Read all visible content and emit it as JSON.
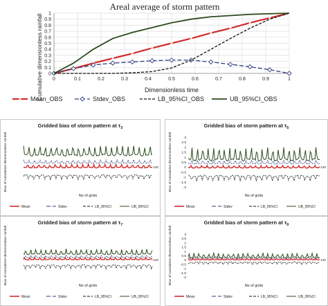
{
  "colors": {
    "mean": "#d42a2a",
    "stdev": "#2a3c78",
    "lb": "#111111",
    "ub": "#2c4a1e",
    "grid": "#dddddd",
    "axis": "#888888",
    "frame": "#bbbbbb"
  },
  "chart_data": [
    {
      "type": "line",
      "title": "Areal average of storm pattern",
      "xlabel": "Dimensionless time",
      "ylabel": "Cumulative dimensionless rainfall",
      "xlim": [
        0,
        1
      ],
      "ylim": [
        0,
        1
      ],
      "x_ticks": [
        "0",
        "0.1",
        "0.2",
        "0.3",
        "0.4",
        "0.5",
        "0.6",
        "0.7",
        "0.8",
        "0.9",
        "1"
      ],
      "y_ticks": [
        "0",
        "0.1",
        "0.2",
        "0.3",
        "0.4",
        "0.5",
        "0.6",
        "0.7",
        "0.8",
        "0.9",
        "1"
      ],
      "grid": true,
      "legend_position": "bottom",
      "x": [
        0,
        0.083,
        0.167,
        0.25,
        0.333,
        0.417,
        0.5,
        0.583,
        0.667,
        0.75,
        0.833,
        0.917,
        1
      ],
      "series": [
        {
          "key": "mean",
          "name": "Mean_OBS",
          "style": "solid-x",
          "values": [
            0,
            0.08,
            0.17,
            0.25,
            0.33,
            0.42,
            0.5,
            0.58,
            0.67,
            0.75,
            0.84,
            0.92,
            1
          ]
        },
        {
          "key": "stdev",
          "name": "Stdev_OBS",
          "style": "dash-diamond",
          "values": [
            0,
            0.08,
            0.14,
            0.17,
            0.19,
            0.21,
            0.22,
            0.22,
            0.19,
            0.15,
            0.11,
            0.06,
            0
          ]
        },
        {
          "key": "lb",
          "name": "LB_95%CI_OBS",
          "style": "dash",
          "values": [
            0,
            0,
            0,
            0,
            0.01,
            0.03,
            0.09,
            0.22,
            0.4,
            0.58,
            0.75,
            0.9,
            1
          ]
        },
        {
          "key": "ub",
          "name": "UB_95%CI_OBS",
          "style": "solid",
          "values": [
            0,
            0.17,
            0.4,
            0.58,
            0.68,
            0.76,
            0.84,
            0.9,
            0.94,
            0.96,
            0.98,
            0.99,
            1
          ]
        }
      ]
    },
    {
      "type": "line",
      "title": "Gridded bias of storm pattern at",
      "title_sub": "3",
      "xlabel": "No of grids",
      "ylabel": "Bias of cumulative dimensionless rainfall",
      "ylim": [
        -2,
        3
      ],
      "y_ticks": [],
      "x_end_label": "140",
      "legend_position": "bottom",
      "series_levels": {
        "mean": 0.05,
        "stdev": 0.5,
        "lb": -0.85,
        "ub": 1.5
      },
      "series_amplitude": {
        "mean": 0.2,
        "stdev": 0.2,
        "lb": 0.35,
        "ub": 0.55
      }
    },
    {
      "type": "line",
      "title": "Gridded bias of storm pattern at",
      "title_sub": "5",
      "xlabel": "No of grids",
      "ylabel": "Bias of cumulative dimensionless rainfall",
      "ylim": [
        -2,
        3
      ],
      "y_ticks": [
        "3",
        "2.5",
        "2",
        "1.5",
        "1",
        "0.5",
        "0",
        "-0.5",
        "-1",
        "-1.5",
        "-2"
      ],
      "x_end_label": "140",
      "legend_position": "bottom",
      "series_levels": {
        "mean": 0.0,
        "stdev": 0.45,
        "lb": -0.9,
        "ub": 1.15
      },
      "series_amplitude": {
        "mean": 0.15,
        "stdev": 0.2,
        "lb": 0.45,
        "ub": 0.75
      }
    },
    {
      "type": "line",
      "title": "Gridded bias of storm pattern at",
      "title_sub": "7",
      "xlabel": "No of grids",
      "ylabel": "Bias of cumulative dimensionless rainfall",
      "ylim": [
        -2,
        3
      ],
      "y_ticks": [],
      "x_end_label": "140",
      "legend_position": "bottom",
      "series_levels": {
        "mean": 0.1,
        "stdev": 0.35,
        "lb": -0.65,
        "ub": 0.85
      },
      "series_amplitude": {
        "mean": 0.15,
        "stdev": 0.15,
        "lb": 0.35,
        "ub": 0.35
      }
    },
    {
      "type": "line",
      "title": "Gridded bias of storm pattern at",
      "title_sub": "9",
      "xlabel": "No of grids",
      "ylabel": "Bias of cumulative dimensionless rainfall",
      "ylim": [
        -2,
        3
      ],
      "y_ticks": [
        "3",
        "2.5",
        "2",
        "1.5",
        "1",
        "0.5",
        "0",
        "-0.5",
        "-1",
        "-1.5",
        "-2"
      ],
      "x_end_label": "140",
      "legend_position": "bottom",
      "series_levels": {
        "mean": 0.05,
        "stdev": 0.2,
        "lb": -0.3,
        "ub": 0.45
      },
      "series_amplitude": {
        "mean": 0.1,
        "stdev": 0.08,
        "lb": 0.2,
        "ub": 0.3
      }
    }
  ],
  "small_legend": {
    "mean": "Mean",
    "stdev": "Stdev",
    "lb": "LB_95%CI",
    "ub": "UB_95%CI"
  },
  "tau_symbol": "τ"
}
